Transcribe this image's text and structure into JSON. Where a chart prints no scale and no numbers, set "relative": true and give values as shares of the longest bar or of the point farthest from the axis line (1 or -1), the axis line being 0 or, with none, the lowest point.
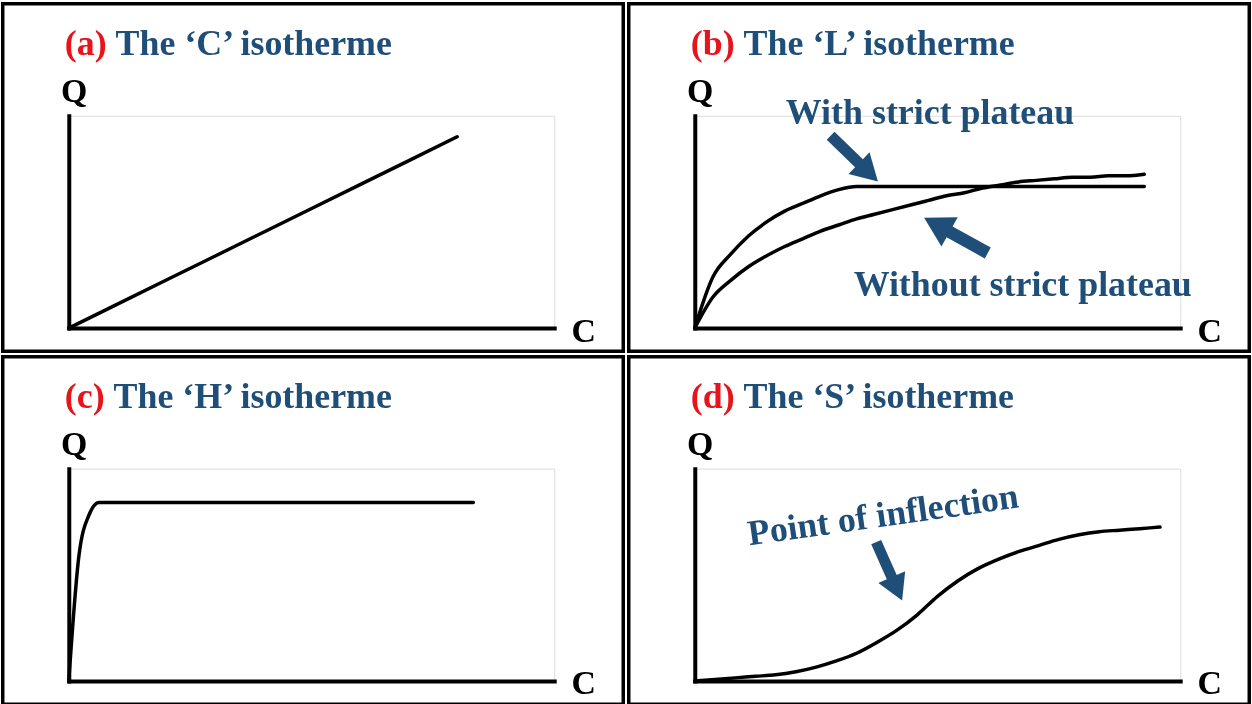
{
  "chart_data": [
    {
      "type": "line",
      "title": "(a) The ‘C’ isotherme",
      "xlabel": "C",
      "ylabel": "Q",
      "relative": true,
      "categories": [
        null,
        null,
        null,
        null,
        null,
        null
      ],
      "series": [
        {
          "color": "#000000",
          "values": [
            0,
            0.25,
            0.5,
            0.75,
            1,
            null
          ]
        }
      ]
    },
    {
      "type": "line",
      "title": "(b) The ‘L’ isotherme",
      "xlabel": "C",
      "ylabel": "Q",
      "relative": true,
      "categories": [
        null,
        null,
        null,
        null,
        null,
        null,
        null,
        null,
        null,
        null,
        null,
        null,
        null,
        null,
        null,
        null,
        null,
        null,
        null,
        null,
        null,
        null,
        null,
        null,
        null,
        null,
        null,
        null
      ],
      "series": [
        {
          "name": "With strict plateau",
          "color": "#000000",
          "values": [
            0,
            0.33,
            0.48,
            0.6,
            0.69,
            0.76,
            0.81,
            0.86,
            0.9,
            0.92,
            0.92,
            0.92,
            0.92,
            0.92,
            0.92,
            0.92,
            0.92,
            0.92,
            0.92,
            0.92,
            0.92,
            0.92,
            0.92,
            0.92,
            0.92,
            0.92,
            null,
            null
          ]
        },
        {
          "name": "Without strict plateau",
          "color": "#000000",
          "values": [
            0,
            0.2,
            0.31,
            0.4,
            0.47,
            0.53,
            0.58,
            0.63,
            0.67,
            0.71,
            0.74,
            0.77,
            0.8,
            0.83,
            0.86,
            0.88,
            0.91,
            0.93,
            0.95,
            0.96,
            0.97,
            0.98,
            0.98,
            0.99,
            0.99,
            1,
            null,
            null
          ]
        }
      ]
    },
    {
      "type": "line",
      "title": "(c) The ‘H’ isotherme",
      "xlabel": "C",
      "ylabel": "Q",
      "relative": true,
      "categories": [
        null,
        null,
        null,
        null,
        null,
        null,
        null,
        null,
        null,
        null,
        null,
        null,
        null,
        null,
        null,
        null,
        null,
        null,
        null,
        null,
        null,
        null,
        null,
        null,
        null,
        null,
        null,
        null,
        null,
        null,
        null,
        null,
        null,
        null,
        null,
        null,
        null,
        null,
        null,
        null,
        null,
        null,
        null,
        null,
        null,
        null,
        null,
        null,
        null
      ],
      "series": [
        {
          "color": "#000000",
          "values": [
            0,
            0.7,
            0.93,
            1,
            1,
            1,
            1,
            1,
            1,
            1,
            1,
            1,
            1,
            1,
            1,
            1,
            1,
            1,
            1,
            1,
            1,
            1,
            1,
            1,
            1,
            1,
            1,
            1,
            1,
            1,
            1,
            1,
            1,
            1,
            1,
            1,
            1,
            1,
            1,
            1,
            1,
            null,
            null,
            null,
            null,
            null,
            null,
            null,
            null
          ]
        }
      ]
    },
    {
      "type": "line",
      "title": "(d) The ‘S’ isotherme",
      "xlabel": "C",
      "ylabel": "Q",
      "relative": true,
      "categories": [
        null,
        null,
        null,
        null,
        null,
        null,
        null,
        null,
        null,
        null,
        null,
        null,
        null,
        null,
        null,
        null,
        null,
        null,
        null,
        null,
        null,
        null,
        null,
        null,
        null
      ],
      "series": [
        {
          "color": "#000000",
          "values": [
            0,
            0.01,
            0.02,
            0.03,
            0.04,
            0.06,
            0.09,
            0.13,
            0.18,
            0.25,
            0.33,
            0.43,
            0.55,
            0.65,
            0.73,
            0.79,
            0.84,
            0.88,
            0.92,
            0.95,
            0.97,
            0.98,
            0.99,
            1,
            null
          ]
        }
      ],
      "annotations": [
        "Point of inflection"
      ]
    }
  ]
}
